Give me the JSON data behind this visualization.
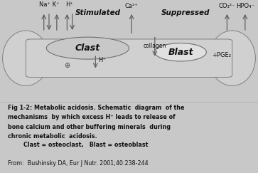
{
  "fig_bg": "#c8c8c8",
  "diagram_bg": "#d8d8d8",
  "caption_bg": "#ffffff",
  "bone_fill": "#d0d0d0",
  "bone_edge": "#808080",
  "clast_fill": "#c8c8c8",
  "blast_fill": "#e0e0e0",
  "arrow_color": "#606060",
  "text_color": "#111111",
  "stimulated": "Stimulated",
  "suppressed": "Suppressed",
  "clast_label": "Clast",
  "blast_label": "Blast",
  "na_k": "Na⁺ K⁺",
  "h_left": "H⁺",
  "ca2": "Ca²⁺",
  "h_mid": "H⁺",
  "collagen": "collagen",
  "pge2": "+PGE₂",
  "co3": "CO₃²⁻",
  "hpo4": "HPO₄⁻",
  "cap1": "Fig 1-2: Metabolic acidosis. Schematic  diagram  of the",
  "cap2": "mechanisms  by which excess H⁺ leads to release of",
  "cap3": "bone calcium and other buffering minerals  during",
  "cap4": "chronic metabolic  acidosis.",
  "cap5": "        Clast = osteoclast,   Blast = osteoblast",
  "cap6": "From:  Bushinsky DA, Eur J Nutr. 2001;40:238-244"
}
